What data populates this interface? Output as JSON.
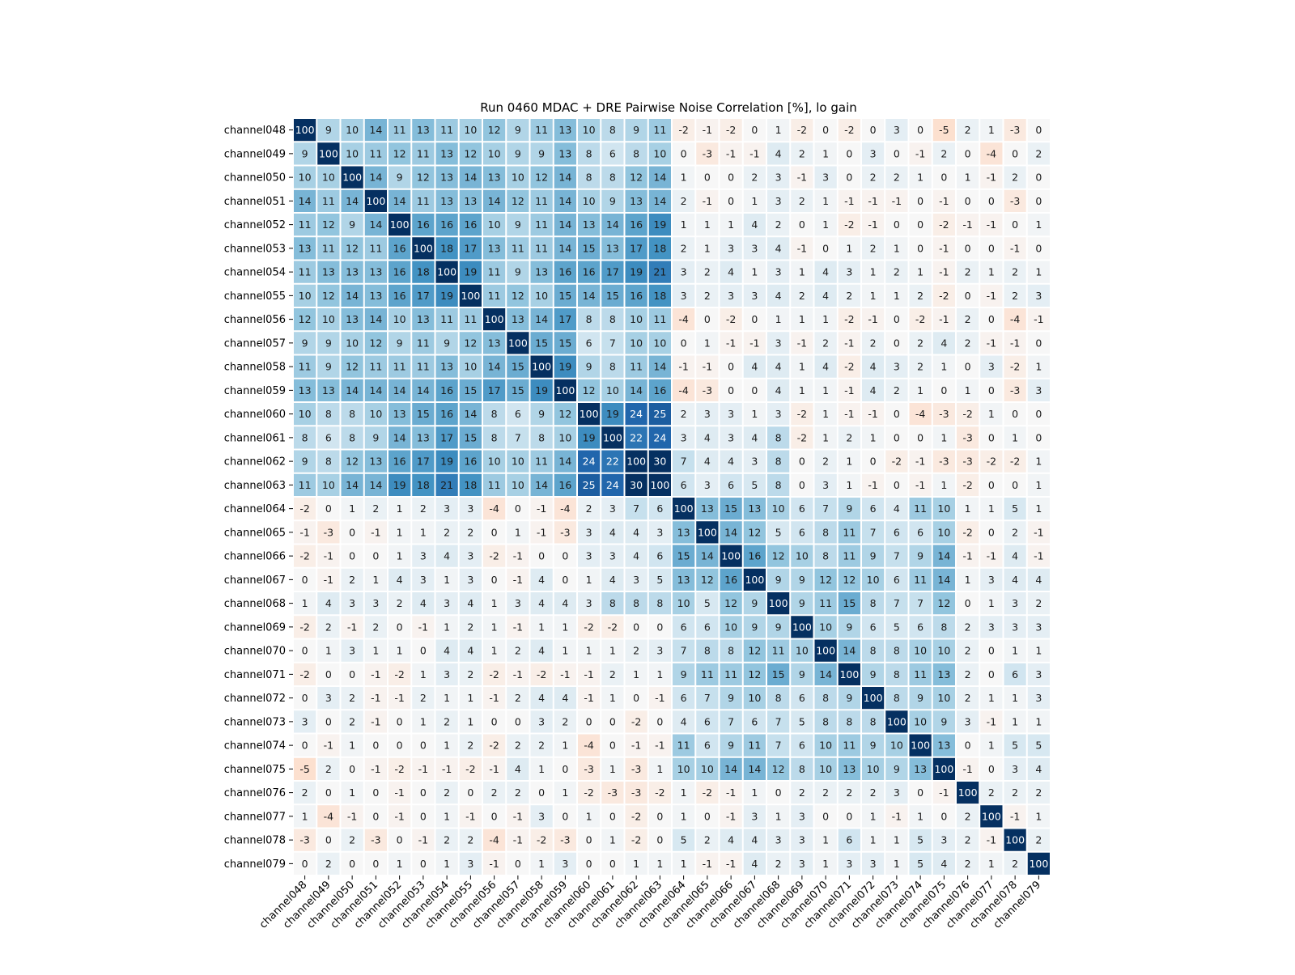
{
  "chart_data": {
    "type": "heatmap",
    "title": "Run 0460 MDAC + DRE Pairwise Noise Correlation [%], lo gain",
    "row_labels": [
      "channel048",
      "channel049",
      "channel050",
      "channel051",
      "channel052",
      "channel053",
      "channel054",
      "channel055",
      "channel056",
      "channel057",
      "channel058",
      "channel059",
      "channel060",
      "channel061",
      "channel062",
      "channel063",
      "channel064",
      "channel065",
      "channel066",
      "channel067",
      "channel068",
      "channel069",
      "channel070",
      "channel071",
      "channel072",
      "channel073",
      "channel074",
      "channel075",
      "channel076",
      "channel077",
      "channel078",
      "channel079"
    ],
    "col_labels": [
      "channel048",
      "channel049",
      "channel050",
      "channel051",
      "channel052",
      "channel053",
      "channel054",
      "channel055",
      "channel056",
      "channel057",
      "channel058",
      "channel059",
      "channel060",
      "channel061",
      "channel062",
      "channel063",
      "channel064",
      "channel065",
      "channel066",
      "channel067",
      "channel068",
      "channel069",
      "channel070",
      "channel071",
      "channel072",
      "channel073",
      "channel074",
      "channel075",
      "channel076",
      "channel077",
      "channel078",
      "channel079"
    ],
    "values": [
      [
        100,
        9,
        10,
        14,
        11,
        13,
        11,
        10,
        12,
        9,
        11,
        13,
        10,
        8,
        9,
        11,
        -2,
        -1,
        -2,
        0,
        1,
        -2,
        0,
        -2,
        0,
        3,
        0,
        -5,
        2,
        1,
        -3,
        0
      ],
      [
        9,
        100,
        10,
        11,
        12,
        11,
        13,
        12,
        10,
        9,
        9,
        13,
        8,
        6,
        8,
        10,
        0,
        -3,
        -1,
        -1,
        4,
        2,
        1,
        0,
        3,
        0,
        -1,
        2,
        0,
        -4,
        0,
        2
      ],
      [
        10,
        10,
        100,
        14,
        9,
        12,
        13,
        14,
        13,
        10,
        12,
        14,
        8,
        8,
        12,
        14,
        1,
        0,
        0,
        2,
        3,
        -1,
        3,
        0,
        2,
        2,
        1,
        0,
        1,
        -1,
        2,
        0
      ],
      [
        14,
        11,
        14,
        100,
        14,
        11,
        13,
        13,
        14,
        12,
        11,
        14,
        10,
        9,
        13,
        14,
        2,
        -1,
        0,
        1,
        3,
        2,
        1,
        -1,
        -1,
        -1,
        0,
        -1,
        0,
        0,
        -3,
        0
      ],
      [
        11,
        12,
        9,
        14,
        100,
        16,
        16,
        16,
        10,
        9,
        11,
        14,
        13,
        14,
        16,
        19,
        1,
        1,
        1,
        4,
        2,
        0,
        1,
        -2,
        -1,
        0,
        0,
        -2,
        -1,
        -1,
        0,
        1
      ],
      [
        13,
        11,
        12,
        11,
        16,
        100,
        18,
        17,
        13,
        11,
        11,
        14,
        15,
        13,
        17,
        18,
        2,
        1,
        3,
        3,
        4,
        -1,
        0,
        1,
        2,
        1,
        0,
        -1,
        0,
        0,
        -1,
        0
      ],
      [
        11,
        13,
        13,
        13,
        16,
        18,
        100,
        19,
        11,
        9,
        13,
        16,
        16,
        17,
        19,
        21,
        3,
        2,
        4,
        1,
        3,
        1,
        4,
        3,
        1,
        2,
        1,
        -1,
        2,
        1,
        2,
        1
      ],
      [
        10,
        12,
        14,
        13,
        16,
        17,
        19,
        100,
        11,
        12,
        10,
        15,
        14,
        15,
        16,
        18,
        3,
        2,
        3,
        3,
        4,
        2,
        4,
        2,
        1,
        1,
        2,
        -2,
        0,
        -1,
        2,
        3
      ],
      [
        12,
        10,
        13,
        14,
        10,
        13,
        11,
        11,
        100,
        13,
        14,
        17,
        8,
        8,
        10,
        11,
        -4,
        0,
        -2,
        0,
        1,
        1,
        1,
        -2,
        -1,
        0,
        -2,
        -1,
        2,
        0,
        -4,
        -1
      ],
      [
        9,
        9,
        10,
        12,
        9,
        11,
        9,
        12,
        13,
        100,
        15,
        15,
        6,
        7,
        10,
        10,
        0,
        1,
        -1,
        -1,
        3,
        -1,
        2,
        -1,
        2,
        0,
        2,
        4,
        2,
        -1,
        -1,
        0
      ],
      [
        11,
        9,
        12,
        11,
        11,
        11,
        13,
        10,
        14,
        15,
        100,
        19,
        9,
        8,
        11,
        14,
        -1,
        -1,
        0,
        4,
        4,
        1,
        4,
        -2,
        4,
        3,
        2,
        1,
        0,
        3,
        -2,
        1
      ],
      [
        13,
        13,
        14,
        14,
        14,
        14,
        16,
        15,
        17,
        15,
        19,
        100,
        12,
        10,
        14,
        16,
        -4,
        -3,
        0,
        0,
        4,
        1,
        1,
        -1,
        4,
        2,
        1,
        0,
        1,
        0,
        -3,
        3
      ],
      [
        10,
        8,
        8,
        10,
        13,
        15,
        16,
        14,
        8,
        6,
        9,
        12,
        100,
        19,
        24,
        25,
        2,
        3,
        3,
        1,
        3,
        -2,
        1,
        -1,
        -1,
        0,
        -4,
        -3,
        -2,
        1,
        0,
        0
      ],
      [
        8,
        6,
        8,
        9,
        14,
        13,
        17,
        15,
        8,
        7,
        8,
        10,
        19,
        100,
        22,
        24,
        3,
        4,
        3,
        4,
        8,
        -2,
        1,
        2,
        1,
        0,
        0,
        1,
        -3,
        0,
        1,
        0
      ],
      [
        9,
        8,
        12,
        13,
        16,
        17,
        19,
        16,
        10,
        10,
        11,
        14,
        24,
        22,
        100,
        30,
        7,
        4,
        4,
        3,
        8,
        0,
        2,
        1,
        0,
        -2,
        -1,
        -3,
        -3,
        -2,
        -2,
        1
      ],
      [
        11,
        10,
        14,
        14,
        19,
        18,
        21,
        18,
        11,
        10,
        14,
        16,
        25,
        24,
        30,
        100,
        6,
        3,
        6,
        5,
        8,
        0,
        3,
        1,
        -1,
        0,
        -1,
        1,
        -2,
        0,
        0,
        1
      ],
      [
        -2,
        0,
        1,
        2,
        1,
        2,
        3,
        3,
        -4,
        0,
        -1,
        -4,
        2,
        3,
        7,
        6,
        100,
        13,
        15,
        13,
        10,
        6,
        7,
        9,
        6,
        4,
        11,
        10,
        1,
        1,
        5,
        1
      ],
      [
        -1,
        -3,
        0,
        -1,
        1,
        1,
        2,
        2,
        0,
        1,
        -1,
        -3,
        3,
        4,
        4,
        3,
        13,
        100,
        14,
        12,
        5,
        6,
        8,
        11,
        7,
        6,
        6,
        10,
        -2,
        0,
        2,
        -1
      ],
      [
        -2,
        -1,
        0,
        0,
        1,
        3,
        4,
        3,
        -2,
        -1,
        0,
        0,
        3,
        3,
        4,
        6,
        15,
        14,
        100,
        16,
        12,
        10,
        8,
        11,
        9,
        7,
        9,
        14,
        -1,
        -1,
        4,
        -1
      ],
      [
        0,
        -1,
        2,
        1,
        4,
        3,
        1,
        3,
        0,
        -1,
        4,
        0,
        1,
        4,
        3,
        5,
        13,
        12,
        16,
        100,
        9,
        9,
        12,
        12,
        10,
        6,
        11,
        14,
        1,
        3,
        4,
        4
      ],
      [
        1,
        4,
        3,
        3,
        2,
        4,
        3,
        4,
        1,
        3,
        4,
        4,
        3,
        8,
        8,
        8,
        10,
        5,
        12,
        9,
        100,
        9,
        11,
        15,
        8,
        7,
        7,
        12,
        0,
        1,
        3,
        2
      ],
      [
        -2,
        2,
        -1,
        2,
        0,
        -1,
        1,
        2,
        1,
        -1,
        1,
        1,
        -2,
        -2,
        0,
        0,
        6,
        6,
        10,
        9,
        9,
        100,
        10,
        9,
        6,
        5,
        6,
        8,
        2,
        3,
        3,
        3
      ],
      [
        0,
        1,
        3,
        1,
        1,
        0,
        4,
        4,
        1,
        2,
        4,
        1,
        1,
        1,
        2,
        3,
        7,
        8,
        8,
        12,
        11,
        10,
        100,
        14,
        8,
        8,
        10,
        10,
        2,
        0,
        1,
        1
      ],
      [
        -2,
        0,
        0,
        -1,
        -2,
        1,
        3,
        2,
        -2,
        -1,
        -2,
        -1,
        -1,
        2,
        1,
        1,
        9,
        11,
        11,
        12,
        15,
        9,
        14,
        100,
        9,
        8,
        11,
        13,
        2,
        0,
        6,
        3
      ],
      [
        0,
        3,
        2,
        -1,
        -1,
        2,
        1,
        1,
        -1,
        2,
        4,
        4,
        -1,
        1,
        0,
        -1,
        6,
        7,
        9,
        10,
        8,
        6,
        8,
        9,
        100,
        8,
        9,
        10,
        2,
        1,
        1,
        3
      ],
      [
        3,
        0,
        2,
        -1,
        0,
        1,
        2,
        1,
        0,
        0,
        3,
        2,
        0,
        0,
        -2,
        0,
        4,
        6,
        7,
        6,
        7,
        5,
        8,
        8,
        8,
        100,
        10,
        9,
        3,
        -1,
        1,
        1
      ],
      [
        0,
        -1,
        1,
        0,
        0,
        0,
        1,
        2,
        -2,
        2,
        2,
        1,
        -4,
        0,
        -1,
        -1,
        11,
        6,
        9,
        11,
        7,
        6,
        10,
        11,
        9,
        10,
        100,
        13,
        0,
        1,
        5,
        5
      ],
      [
        -5,
        2,
        0,
        -1,
        -2,
        -1,
        -1,
        -2,
        -1,
        4,
        1,
        0,
        -3,
        1,
        -3,
        1,
        10,
        10,
        14,
        14,
        12,
        8,
        10,
        13,
        10,
        9,
        13,
        100,
        -1,
        0,
        3,
        4
      ],
      [
        2,
        0,
        1,
        0,
        -1,
        0,
        2,
        0,
        2,
        2,
        0,
        1,
        -2,
        -3,
        -3,
        -2,
        1,
        -2,
        -1,
        1,
        0,
        2,
        2,
        2,
        2,
        3,
        0,
        -1,
        100,
        2,
        2,
        2
      ],
      [
        1,
        -4,
        -1,
        0,
        -1,
        0,
        1,
        -1,
        0,
        -1,
        3,
        0,
        1,
        0,
        -2,
        0,
        1,
        0,
        -1,
        3,
        1,
        3,
        0,
        0,
        1,
        -1,
        1,
        0,
        2,
        100,
        -1,
        1
      ],
      [
        -3,
        0,
        2,
        -3,
        0,
        -1,
        2,
        2,
        -4,
        -1,
        -2,
        -3,
        0,
        1,
        -2,
        0,
        5,
        2,
        4,
        4,
        3,
        3,
        1,
        6,
        1,
        1,
        5,
        3,
        2,
        -1,
        100,
        2
      ],
      [
        0,
        2,
        0,
        0,
        1,
        0,
        1,
        3,
        -1,
        0,
        1,
        3,
        0,
        0,
        1,
        1,
        1,
        -1,
        -1,
        4,
        2,
        3,
        1,
        3,
        3,
        1,
        5,
        4,
        2,
        1,
        2,
        100
      ]
    ],
    "colormap": "RdBu_r",
    "vmin": -30,
    "vmax": 30,
    "cell_border_color": "#ffffff",
    "grid": false,
    "legend": "none"
  }
}
